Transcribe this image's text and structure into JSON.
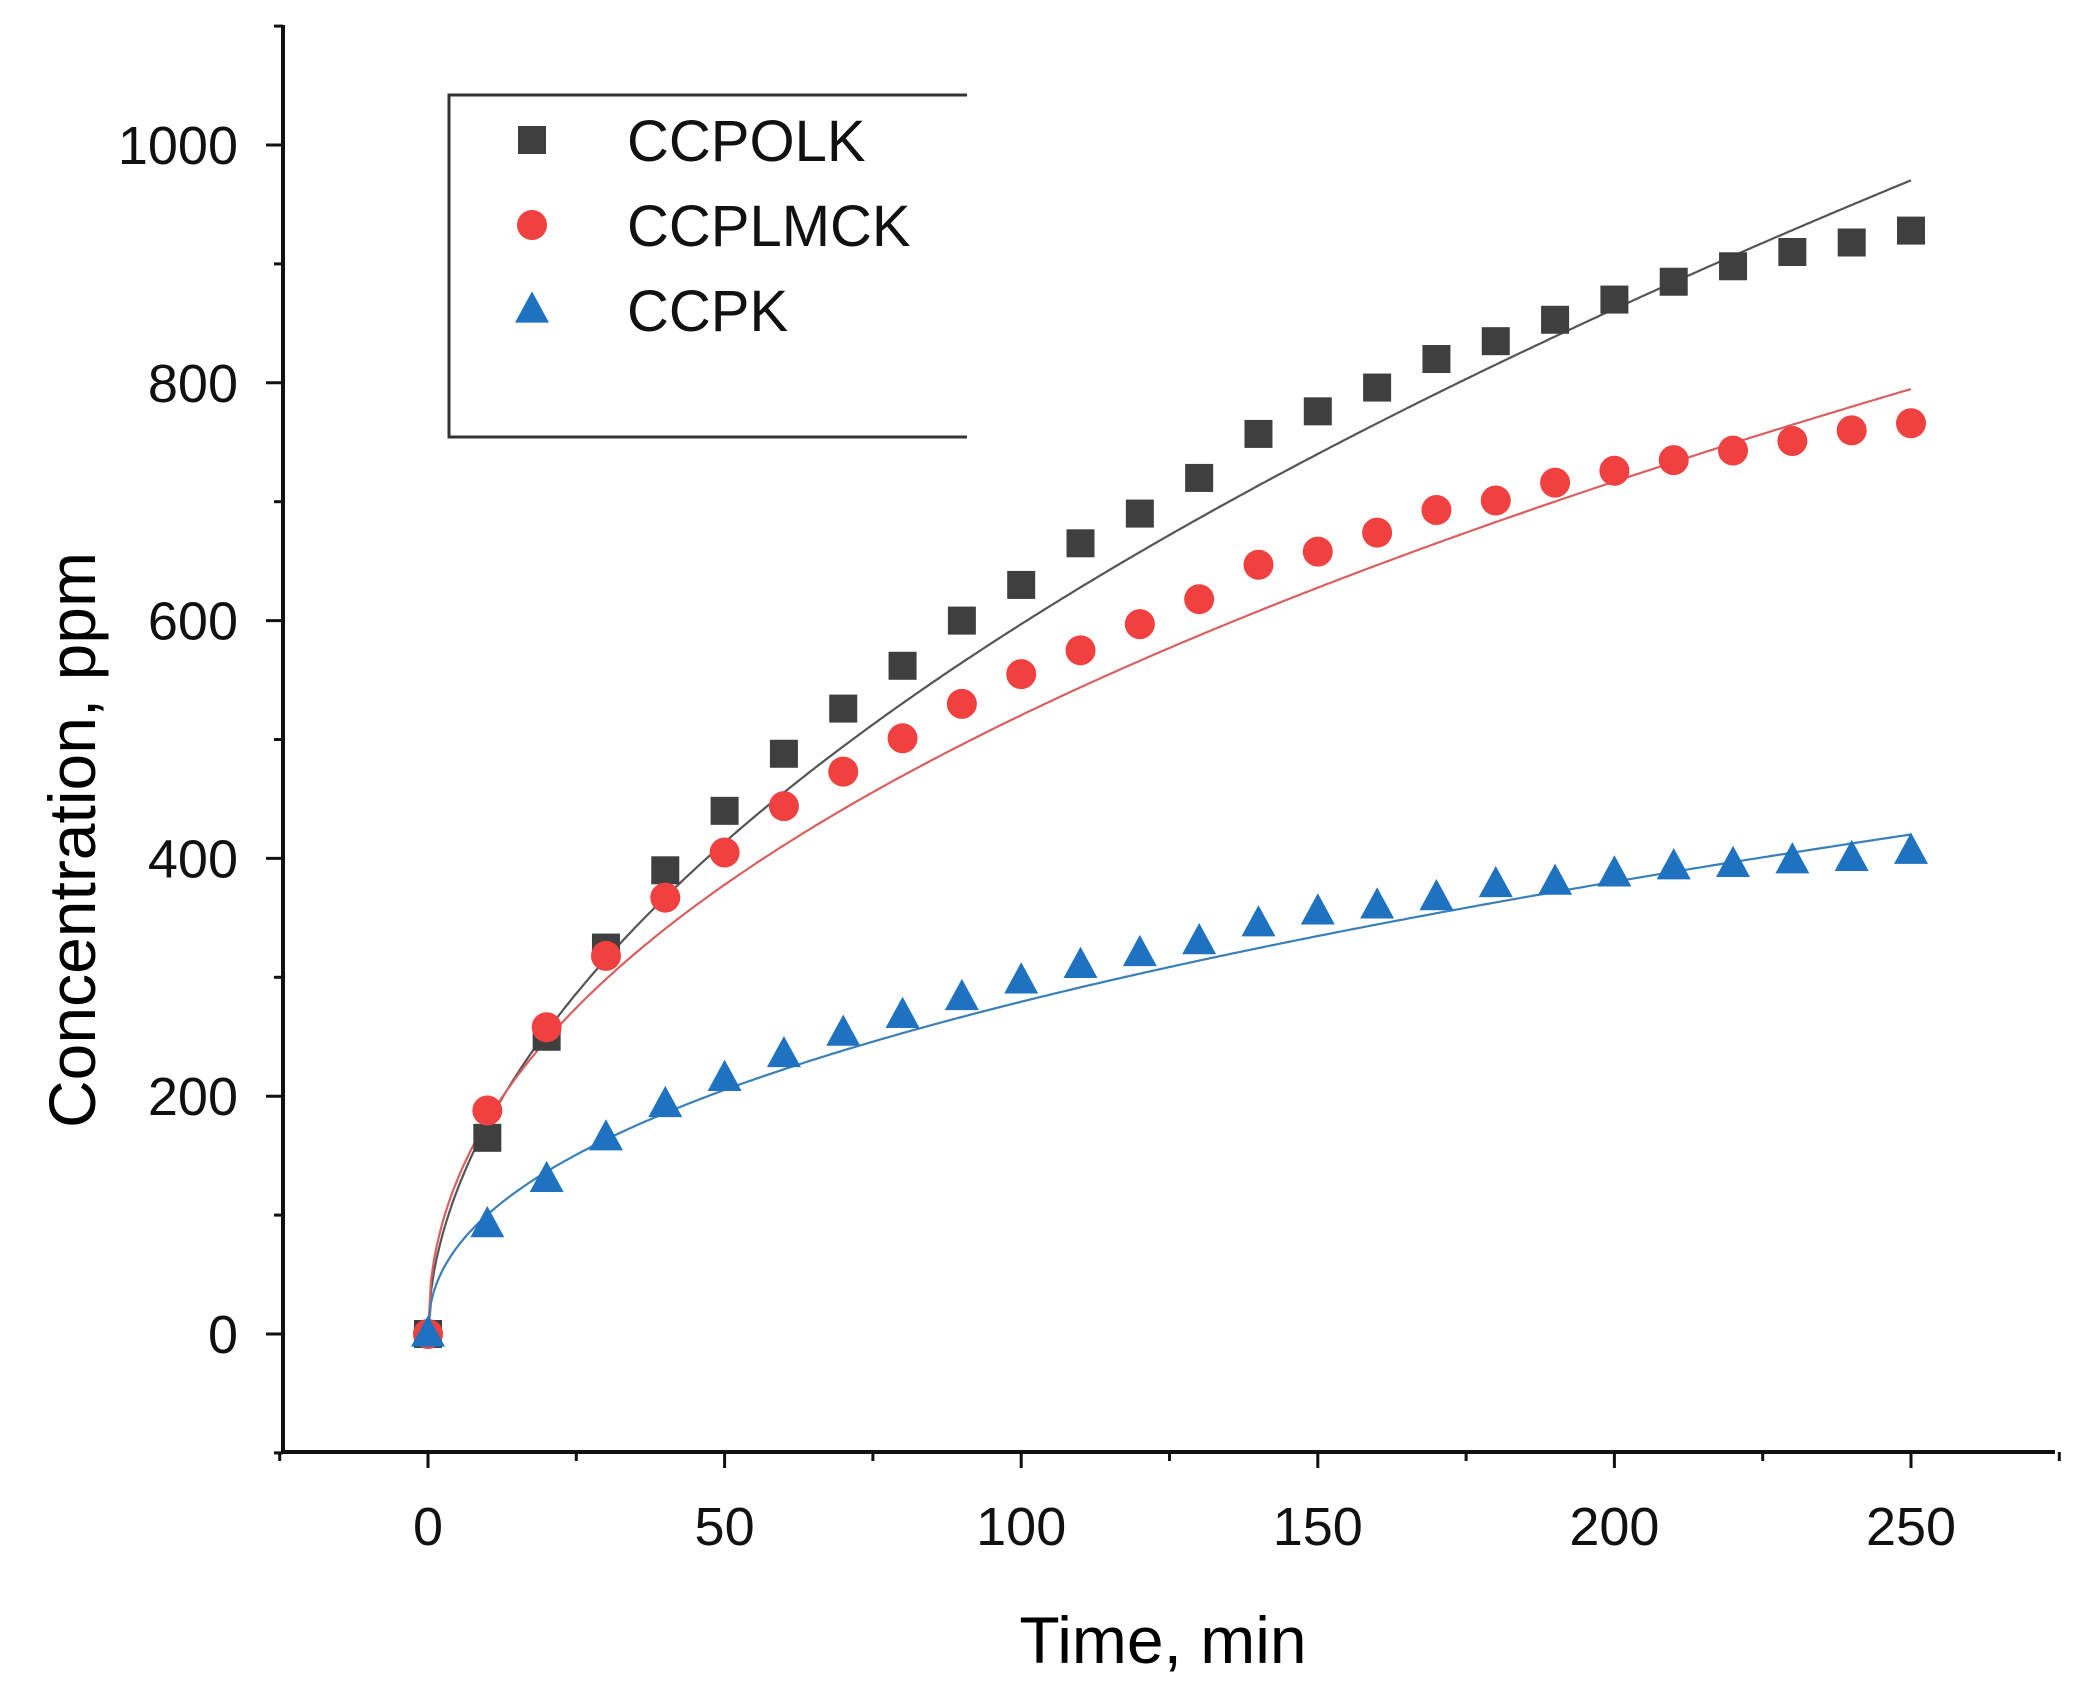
{
  "chart_data": {
    "type": "scatter",
    "title": "",
    "xlabel": "Time, min",
    "ylabel": "Concentration, ppm",
    "xlim": [
      -25,
      275
    ],
    "ylim": [
      -100,
      1100
    ],
    "xticks": [
      0,
      50,
      100,
      150,
      200,
      250
    ],
    "yticks": [
      0,
      200,
      400,
      600,
      800,
      1000
    ],
    "xtick_labels": [
      "0",
      "50",
      "100",
      "150",
      "200",
      "250"
    ],
    "ytick_labels": [
      "0",
      "200",
      "400",
      "600",
      "800",
      "1000"
    ],
    "grid": false,
    "legend_position": "top-left",
    "x": [
      0,
      10,
      20,
      30,
      40,
      50,
      60,
      70,
      80,
      90,
      100,
      110,
      120,
      130,
      140,
      150,
      160,
      170,
      180,
      190,
      200,
      210,
      220,
      230,
      240,
      250
    ],
    "series": [
      {
        "name": "CCPOLK",
        "marker": "square",
        "color": "#3f3f3f",
        "fit_color": "#555555",
        "values": [
          0,
          165,
          250,
          325,
          390,
          440,
          488,
          526,
          562,
          600,
          630,
          665,
          690,
          720,
          757,
          776,
          796,
          820,
          835,
          853,
          870,
          885,
          898,
          910,
          918,
          928
        ],
        "fit": {
          "a": 52.0,
          "n": 0.53
        }
      },
      {
        "name": "CCPLMCK",
        "marker": "circle",
        "color": "#f04040",
        "fit_color": "#d86060",
        "values": [
          0,
          188,
          258,
          318,
          367,
          405,
          444,
          473,
          501,
          530,
          555,
          575,
          597,
          618,
          647,
          658,
          674,
          693,
          701,
          716,
          726,
          735,
          743,
          751,
          760,
          766
        ],
        "fit": {
          "a": 62.0,
          "n": 0.462
        }
      },
      {
        "name": "CCPK",
        "marker": "triangle",
        "color": "#1e72c0",
        "fit_color": "#3a7fb8",
        "values": [
          0,
          92,
          130,
          165,
          193,
          215,
          235,
          253,
          268,
          283,
          297,
          310,
          320,
          330,
          345,
          355,
          360,
          367,
          378,
          380,
          387,
          393,
          395,
          398,
          400,
          406
        ],
        "fit": {
          "a": 36.0,
          "n": 0.445
        }
      }
    ]
  }
}
